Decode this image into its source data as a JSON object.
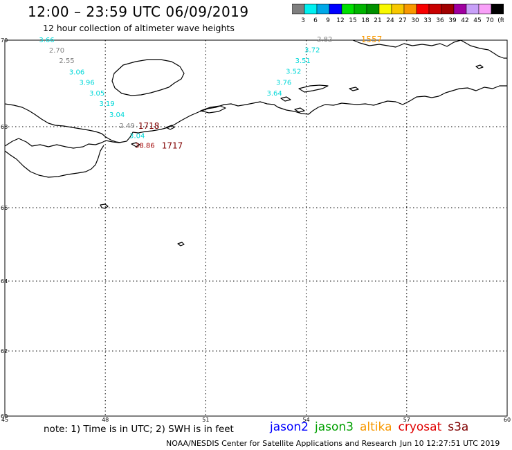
{
  "header": {
    "title": "12:00 – 23:59 UTC 06/09/2019",
    "subtitle": "12 hour collection of altimeter wave heights"
  },
  "colorbar": {
    "colors": [
      "#7f7f7f",
      "#00f0f0",
      "#00a8e8",
      "#0000ff",
      "#00e000",
      "#00b400",
      "#009000",
      "#f8f800",
      "#f8c800",
      "#f89800",
      "#f80000",
      "#c80000",
      "#a00000",
      "#a000a0",
      "#c8a0f8",
      "#f8a0f8",
      "#000000"
    ],
    "labels": [
      "3",
      "6",
      "9",
      "12",
      "15",
      "18",
      "21",
      "24",
      "27",
      "30",
      "33",
      "36",
      "39",
      "42",
      "45",
      "70",
      "(ft)"
    ]
  },
  "map": {
    "lon_ticks": [
      "45",
      "48",
      "51",
      "54",
      "57",
      "60"
    ],
    "lat_ticks": [
      "70",
      "68",
      "66",
      "64",
      "62",
      "60"
    ],
    "lon_range": [
      45,
      60
    ],
    "lat_range": [
      60,
      70
    ],
    "gridlines": true
  },
  "observations": [
    {
      "value": "3.66",
      "lon": 46.25,
      "lat": 70.0,
      "color": "#00d8d8"
    },
    {
      "value": "2.70",
      "lon": 46.55,
      "lat": 69.76,
      "color": "#808080"
    },
    {
      "value": "2.55",
      "lon": 46.85,
      "lat": 69.52,
      "color": "#808080"
    },
    {
      "value": "3.06",
      "lon": 47.15,
      "lat": 69.26,
      "color": "#00d8d8"
    },
    {
      "value": "3.96",
      "lon": 47.45,
      "lat": 69.02,
      "color": "#00d8d8"
    },
    {
      "value": "3.05",
      "lon": 47.75,
      "lat": 68.77,
      "color": "#00d8d8"
    },
    {
      "value": "3.19",
      "lon": 48.05,
      "lat": 68.53,
      "color": "#00d8d8"
    },
    {
      "value": "3.04",
      "lon": 48.35,
      "lat": 68.27,
      "color": "#00d8d8"
    },
    {
      "value": "2.49",
      "lon": 48.65,
      "lat": 68.02,
      "color": "#808080"
    },
    {
      "value": "3.04",
      "lon": 48.95,
      "lat": 67.77,
      "color": "#00d8d8"
    },
    {
      "value": "38.86",
      "lon": 49.18,
      "lat": 67.53,
      "color": "#a00000"
    },
    {
      "value": "2.82",
      "lon": 54.55,
      "lat": 70.02,
      "color": "#808080"
    },
    {
      "value": "3.72",
      "lon": 54.18,
      "lat": 69.77,
      "color": "#00d8d8"
    },
    {
      "value": "3.51",
      "lon": 53.9,
      "lat": 69.52,
      "color": "#00d8d8"
    },
    {
      "value": "3.52",
      "lon": 53.62,
      "lat": 69.27,
      "color": "#00d8d8"
    },
    {
      "value": "3.76",
      "lon": 53.33,
      "lat": 69.02,
      "color": "#00d8d8"
    },
    {
      "value": "3.64",
      "lon": 53.05,
      "lat": 68.77,
      "color": "#00d8d8"
    }
  ],
  "track_times": [
    {
      "label": "1718",
      "lon": 49.3,
      "lat": 68.02,
      "color": "#800000"
    },
    {
      "label": "1717",
      "lon": 50.0,
      "lat": 67.53,
      "color": "#800000"
    },
    {
      "label": "1557",
      "lon": 55.95,
      "lat": 70.02,
      "color": "#f89800"
    }
  ],
  "footer": {
    "note": "note:  1) Time is in UTC;  2) SWH is in feet",
    "missions": [
      {
        "name": "jason2",
        "color": "#0000ff"
      },
      {
        "name": "jason3",
        "color": "#00a000"
      },
      {
        "name": "altika",
        "color": "#f89800"
      },
      {
        "name": "cryosat",
        "color": "#e00000"
      },
      {
        "name": "s3a",
        "color": "#800000"
      }
    ],
    "credit": "NOAA/NESDIS Center for Satellite Applications and Research",
    "generated": "Jun 10 12:27:51 UTC 2019"
  }
}
